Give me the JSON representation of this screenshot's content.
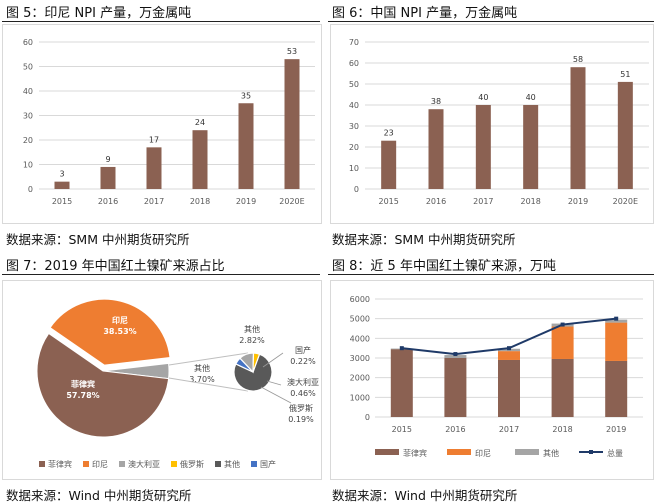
{
  "captions": {
    "fig5": "图 5：印尼 NPI 产量，万金属吨",
    "fig6": "图 6：中国 NPI 产量，万金属吨",
    "fig7": "图 7：2019 年中国红土镍矿来源占比",
    "fig8": "图 8：近 5 年中国红土镍矿来源，万吨"
  },
  "sources": {
    "fig5": "数据来源：SMM   中州期货研究所",
    "fig6": "数据来源：SMM   中州期货研究所",
    "fig7": "数据来源：Wind   中州期货研究所",
    "fig8": "数据来源：Wind   中州期货研究所"
  },
  "colors": {
    "bar": "#8B6152",
    "orange": "#EE7D31",
    "gray": "#A5A5A5",
    "line": "#1F3A68",
    "dark": "#595959",
    "grid": "#d9d9d9"
  },
  "chart_data": [
    {
      "type": "bar",
      "categories": [
        "2015",
        "2016",
        "2017",
        "2018",
        "2019",
        "2020E"
      ],
      "values": [
        3,
        9,
        17,
        24,
        35,
        53
      ],
      "title": "",
      "xlabel": "",
      "ylabel": "",
      "ylim": [
        0,
        60
      ],
      "yticks": [
        0,
        10,
        20,
        30,
        40,
        50,
        60
      ],
      "grid": true
    },
    {
      "type": "bar",
      "categories": [
        "2015",
        "2016",
        "2017",
        "2018",
        "2019",
        "2020E"
      ],
      "values": [
        23,
        38,
        40,
        40,
        58,
        51
      ],
      "title": "",
      "xlabel": "",
      "ylabel": "",
      "ylim": [
        0,
        70
      ],
      "yticks": [
        0,
        10,
        20,
        30,
        40,
        50,
        60,
        70
      ],
      "grid": true
    },
    {
      "type": "pie",
      "slices": [
        {
          "name": "菲律宾",
          "value": 57.78,
          "label": "57.78%",
          "color": "#8B6152"
        },
        {
          "name": "印尼",
          "value": 38.53,
          "label": "38.53%",
          "color": "#EE7D31"
        },
        {
          "name": "澳大利亚",
          "value": 0.46,
          "label": "0.46%",
          "color": "#A5A5A5"
        },
        {
          "name": "俄罗斯",
          "value": 0.19,
          "label": "0.19%",
          "color": "#FFC000"
        },
        {
          "name": "其他",
          "value": 2.82,
          "label": "2.82%",
          "color": "#595959"
        },
        {
          "name": "国产",
          "value": 0.22,
          "label": "0.22%",
          "color": "#4472C4"
        }
      ],
      "other_group": {
        "name": "其他",
        "value": 3.7,
        "label": "3.70%"
      },
      "legend": [
        "菲律宾",
        "印尼",
        "澳大利亚",
        "俄罗斯",
        "其他",
        "国产"
      ],
      "legend_position": "bottom"
    },
    {
      "type": "bar",
      "stacked": true,
      "categories": [
        "2015",
        "2016",
        "2017",
        "2018",
        "2019"
      ],
      "series": [
        {
          "name": "菲律宾",
          "values": [
            3450,
            3000,
            2900,
            2950,
            2850
          ]
        },
        {
          "name": "印尼",
          "values": [
            0,
            0,
            450,
            1650,
            1950
          ]
        },
        {
          "name": "其他",
          "values": [
            30,
            150,
            120,
            150,
            150
          ]
        },
        {
          "name": "总量",
          "type": "line",
          "values": [
            3500,
            3200,
            3500,
            4700,
            5000
          ]
        }
      ],
      "ylim": [
        0,
        6000
      ],
      "yticks": [
        0,
        1000,
        2000,
        3000,
        4000,
        5000,
        6000
      ],
      "grid": true,
      "legend_position": "bottom"
    }
  ]
}
